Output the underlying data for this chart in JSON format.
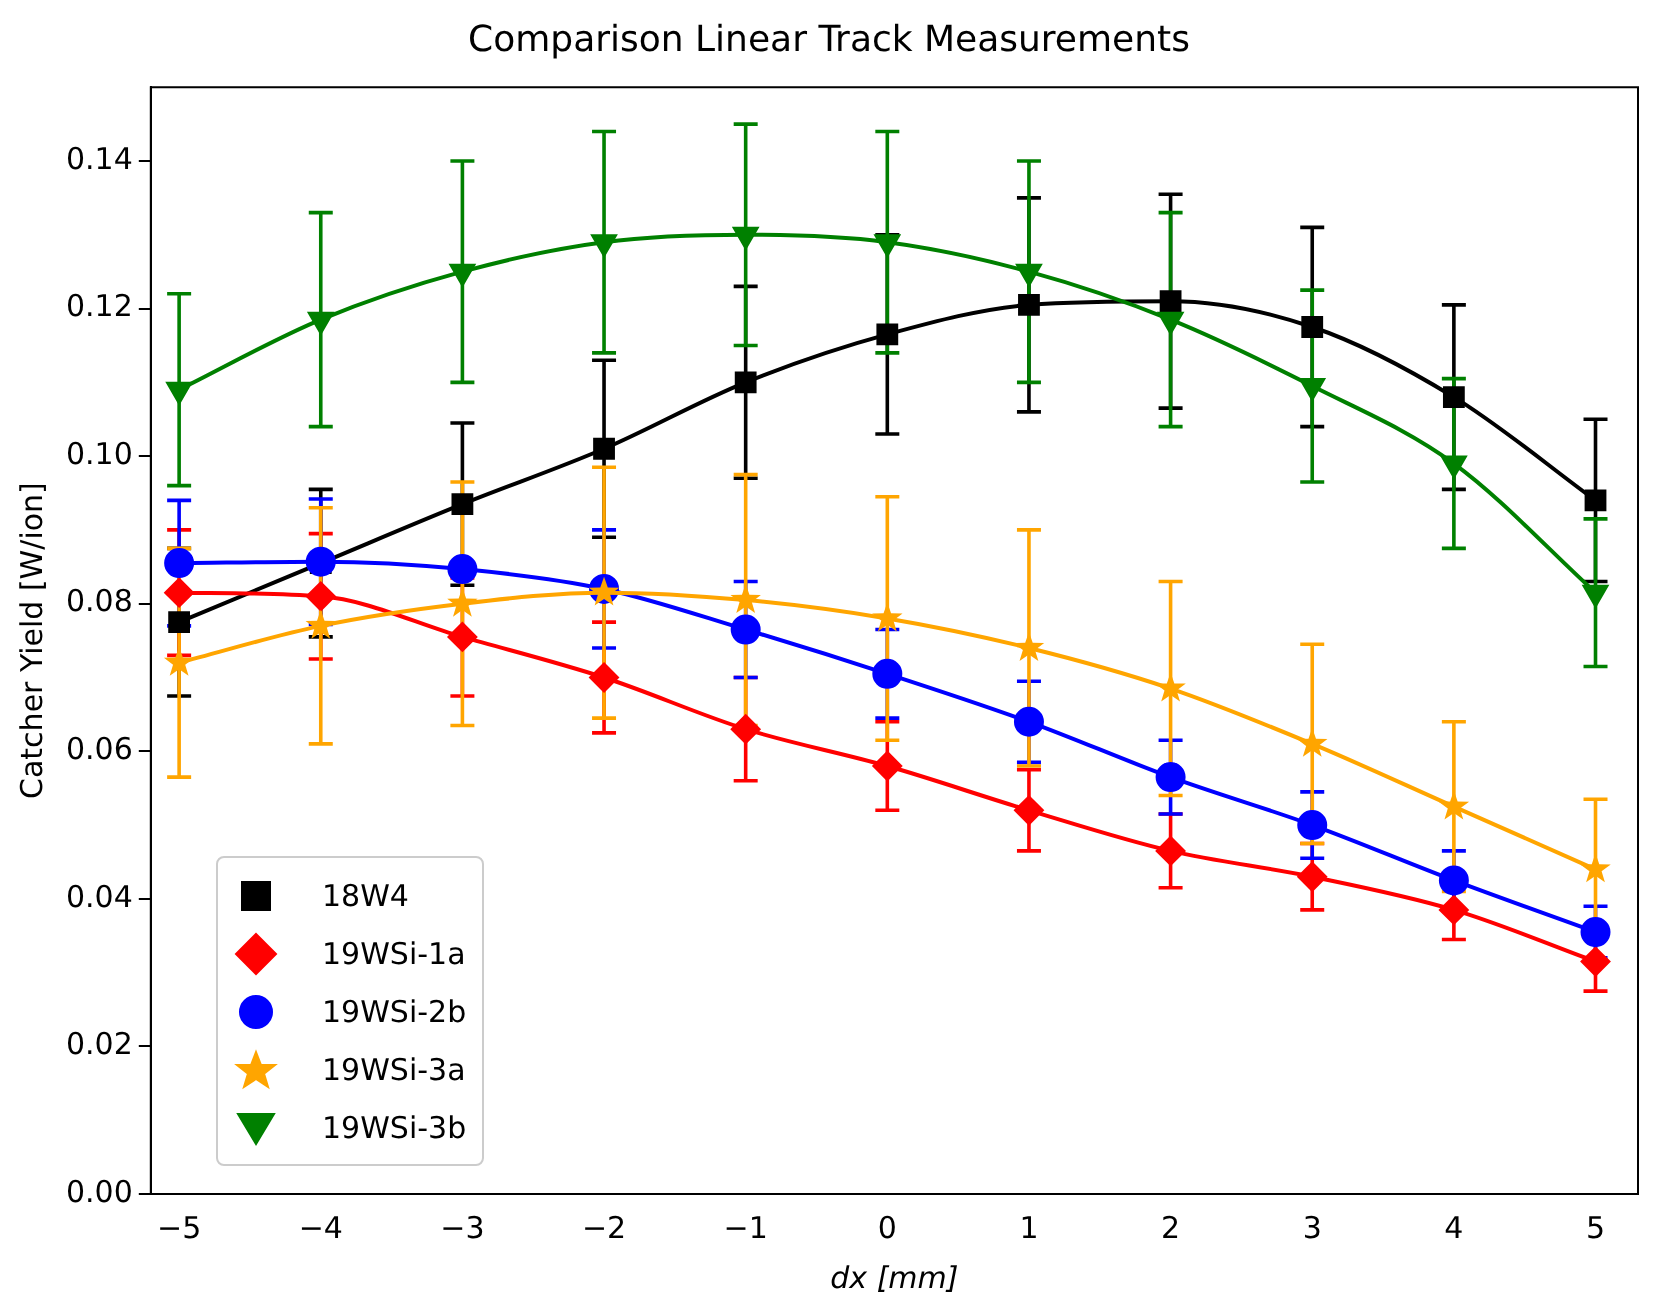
{
  "chart_data": {
    "type": "line",
    "title": "Comparison Linear Track Measurements",
    "xlabel": "dx [mm]",
    "ylabel": "Catcher Yield [W/ion]",
    "x": [
      -5,
      -4,
      -3,
      -2,
      -1,
      0,
      1,
      2,
      3,
      4,
      5
    ],
    "xlim": [
      -5.2,
      5.3
    ],
    "xticks": [
      {
        "value": -5,
        "label": "−5"
      },
      {
        "value": -4,
        "label": "−4"
      },
      {
        "value": -3,
        "label": "−3"
      },
      {
        "value": -2,
        "label": "−2"
      },
      {
        "value": -1,
        "label": "−1"
      },
      0,
      1,
      2,
      3,
      4,
      5
    ],
    "ylim": [
      0,
      0.15
    ],
    "yticks": [
      {
        "value": 0,
        "label": "0.00"
      },
      {
        "value": 0.02,
        "label": "0.02"
      },
      {
        "value": 0.04,
        "label": "0.04"
      },
      {
        "value": 0.06,
        "label": "0.06"
      },
      {
        "value": 0.08,
        "label": "0.08"
      },
      {
        "value": 0.1,
        "label": "0.10"
      },
      {
        "value": 0.12,
        "label": "0.12"
      },
      {
        "value": 0.14,
        "label": "0.14"
      }
    ],
    "grid": false,
    "legend": "bottom left",
    "series": [
      {
        "name": "18W4",
        "color": "#000000",
        "marker": "square",
        "values": [
          0.0775,
          0.0855,
          0.0935,
          0.101,
          0.11,
          0.1165,
          0.1205,
          0.121,
          0.1175,
          0.108,
          0.094
        ],
        "errors": [
          0.01,
          0.01,
          0.011,
          0.012,
          0.013,
          0.0135,
          0.0145,
          0.0145,
          0.0135,
          0.0125,
          0.011
        ]
      },
      {
        "name": "19WSi-1a",
        "color": "#ff0000",
        "marker": "diamond",
        "values": [
          0.0815,
          0.081,
          0.0755,
          0.07,
          0.063,
          0.058,
          0.052,
          0.0465,
          0.043,
          0.0385,
          0.0315
        ],
        "errors": [
          0.0085,
          0.0085,
          0.008,
          0.0075,
          0.007,
          0.006,
          0.0055,
          0.005,
          0.0045,
          0.004,
          0.004
        ]
      },
      {
        "name": "19WSi-2b",
        "color": "#0000ff",
        "marker": "circle",
        "values": [
          0.0855,
          0.0857,
          0.0847,
          0.082,
          0.0765,
          0.0705,
          0.064,
          0.0565,
          0.05,
          0.0425,
          0.0355
        ],
        "errors": [
          0.0085,
          0.0085,
          null,
          0.008,
          0.0065,
          0.006,
          0.0055,
          0.005,
          0.0045,
          0.004,
          0.0035
        ]
      },
      {
        "name": "19WSi-3a",
        "color": "#ffa500",
        "marker": "star",
        "values": [
          0.072,
          0.077,
          0.08,
          0.0815,
          0.0805,
          0.078,
          0.074,
          0.0685,
          0.061,
          0.0525,
          0.044
        ],
        "errors": [
          0.0155,
          0.016,
          0.0165,
          0.017,
          0.017,
          0.0165,
          0.016,
          0.0145,
          0.0135,
          0.0115,
          0.0095
        ]
      },
      {
        "name": "19WSi-3b",
        "color": "#008000",
        "marker": "triangle",
        "values": [
          0.109,
          0.1185,
          0.125,
          0.129,
          0.13,
          0.129,
          0.125,
          0.1185,
          0.1095,
          0.099,
          0.0815
        ],
        "errors": [
          0.013,
          0.0145,
          0.015,
          0.015,
          0.015,
          0.015,
          0.015,
          0.0145,
          0.013,
          0.0115,
          0.01
        ]
      }
    ]
  }
}
